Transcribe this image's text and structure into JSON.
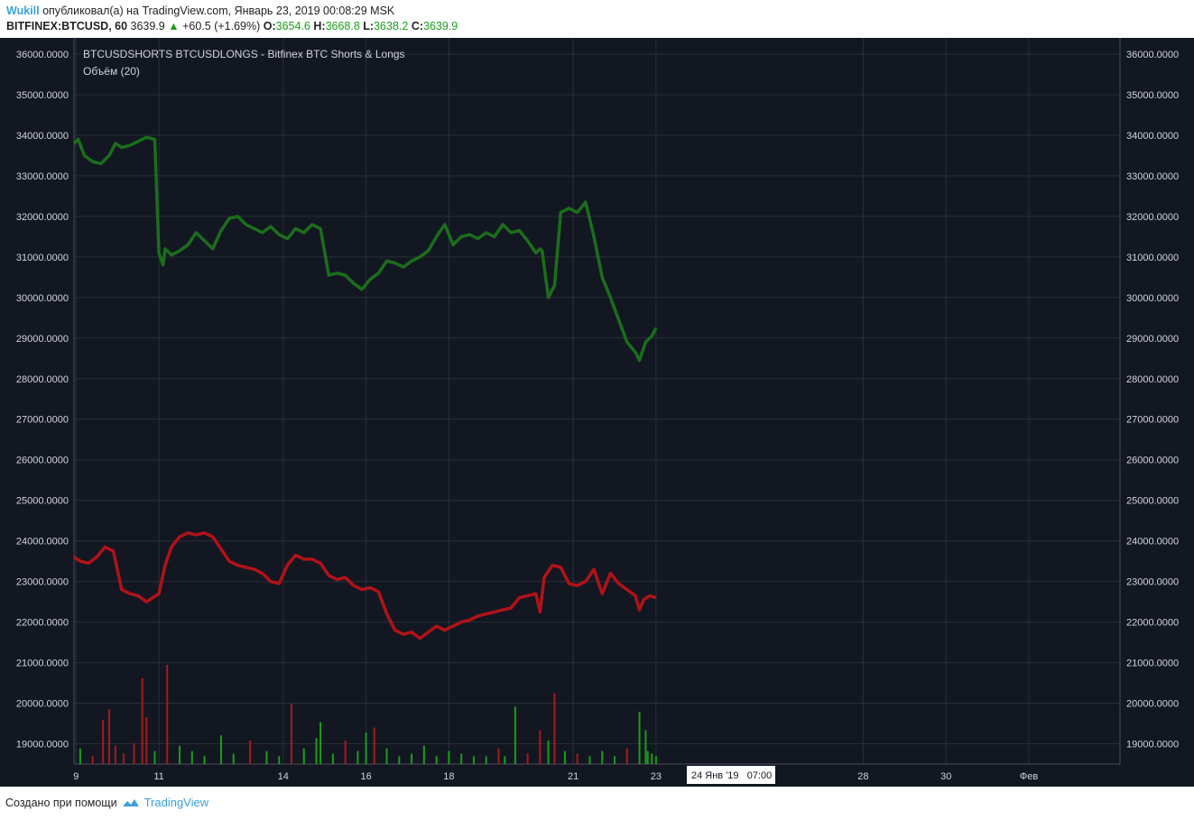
{
  "header": {
    "user": "Wukill",
    "published_text": "опубликовал(а) на TradingView.com, Январь 23, 2019 00:08:29 MSK",
    "symbol": "BITFINEX:BTCUSD, 60",
    "price": "3639.9",
    "change": "+60.5 (+1.69%)",
    "open_label": "O:",
    "open": "3654.6",
    "high_label": "H:",
    "high": "3668.8",
    "low_label": "L:",
    "low": "3638.2",
    "close_label": "C:",
    "close": "3639.9"
  },
  "legend": {
    "line1": "BTCUSDSHORTS BTCUSDLONGS - Bitfinex BTC Shorts & Longs",
    "line2": "Объём (20)"
  },
  "crosshair_label": "24 Янв '19   07:00",
  "footer": {
    "made_with": "Создано при помощи",
    "brand": "TradingView"
  },
  "colors": {
    "background": "#131722",
    "grid": "#2a2e39",
    "longs": "#1b6e1b",
    "shorts": "#b01318",
    "volume_up": "#18a018",
    "volume_down": "#a51b1b",
    "axis_text": "#d1d4dc"
  },
  "chart_data": {
    "type": "line",
    "y_ticks": [
      "36000.0000",
      "35000.0000",
      "34000.0000",
      "33000.0000",
      "32000.0000",
      "31000.0000",
      "30000.0000",
      "29000.0000",
      "28000.0000",
      "27000.0000",
      "26000.0000",
      "25000.0000",
      "24000.0000",
      "23000.0000",
      "22000.0000",
      "21000.0000",
      "20000.0000",
      "19000.0000"
    ],
    "ylim": [
      18500,
      36400
    ],
    "x_ticks": [
      "9",
      "11",
      "14",
      "16",
      "18",
      "21",
      "23",
      "28",
      "30",
      "Фев"
    ],
    "x_tick_days": [
      9,
      11,
      14,
      16,
      18,
      21,
      23,
      28,
      30,
      32
    ],
    "xlim": [
      8.95,
      34.2
    ],
    "series": [
      {
        "key": "longs",
        "x": [
          8.95,
          9.05,
          9.2,
          9.4,
          9.6,
          9.8,
          9.95,
          10.1,
          10.3,
          10.5,
          10.7,
          10.9,
          11.0,
          11.1,
          11.15,
          11.3,
          11.5,
          11.7,
          11.9,
          12.1,
          12.3,
          12.5,
          12.7,
          12.9,
          13.1,
          13.3,
          13.5,
          13.7,
          13.9,
          14.1,
          14.3,
          14.5,
          14.7,
          14.9,
          15.1,
          15.3,
          15.5,
          15.7,
          15.9,
          16.1,
          16.3,
          16.5,
          16.7,
          16.9,
          17.1,
          17.3,
          17.5,
          17.7,
          17.9,
          18.1,
          18.3,
          18.5,
          18.7,
          18.9,
          19.1,
          19.3,
          19.5,
          19.7,
          19.9,
          20.1,
          20.2,
          20.25,
          20.4,
          20.55,
          20.7,
          20.9,
          21.1,
          21.3,
          21.5,
          21.7,
          21.9,
          22.1,
          22.3,
          22.5,
          22.6,
          22.75,
          22.85,
          22.9,
          23.0
        ],
        "values": [
          33800,
          33900,
          33500,
          33350,
          33300,
          33500,
          33800,
          33700,
          33750,
          33850,
          33950,
          33900,
          31100,
          30800,
          31200,
          31050,
          31150,
          31300,
          31600,
          31400,
          31200,
          31650,
          31950,
          32000,
          31800,
          31700,
          31600,
          31750,
          31550,
          31450,
          31700,
          31600,
          31800,
          31700,
          30550,
          30600,
          30550,
          30350,
          30200,
          30450,
          30600,
          30900,
          30850,
          30750,
          30900,
          31000,
          31150,
          31500,
          31800,
          31300,
          31500,
          31550,
          31450,
          31600,
          31500,
          31800,
          31600,
          31650,
          31400,
          31100,
          31200,
          31150,
          30000,
          30300,
          32100,
          32200,
          32100,
          32350,
          31500,
          30500,
          30000,
          29450,
          28900,
          28650,
          28450,
          28900,
          29000,
          29050,
          29250
        ]
      },
      {
        "key": "shorts",
        "x": [
          8.95,
          9.1,
          9.3,
          9.5,
          9.7,
          9.9,
          10.1,
          10.3,
          10.5,
          10.7,
          10.85,
          11.0,
          11.15,
          11.3,
          11.5,
          11.7,
          11.9,
          12.1,
          12.3,
          12.5,
          12.7,
          12.9,
          13.1,
          13.3,
          13.5,
          13.7,
          13.9,
          14.1,
          14.3,
          14.5,
          14.7,
          14.9,
          15.1,
          15.3,
          15.5,
          15.7,
          15.9,
          16.1,
          16.3,
          16.5,
          16.7,
          16.9,
          17.1,
          17.3,
          17.5,
          17.7,
          17.9,
          18.1,
          18.3,
          18.5,
          18.7,
          18.9,
          19.1,
          19.3,
          19.5,
          19.7,
          19.9,
          20.1,
          20.2,
          20.3,
          20.5,
          20.7,
          20.9,
          21.1,
          21.3,
          21.5,
          21.7,
          21.9,
          22.1,
          22.3,
          22.5,
          22.6,
          22.7,
          22.85,
          23.0
        ],
        "values": [
          23600,
          23500,
          23450,
          23600,
          23850,
          23750,
          22800,
          22700,
          22650,
          22500,
          22600,
          22700,
          23400,
          23850,
          24100,
          24200,
          24150,
          24200,
          24100,
          23800,
          23500,
          23400,
          23350,
          23300,
          23200,
          23000,
          22950,
          23400,
          23650,
          23550,
          23550,
          23450,
          23150,
          23050,
          23100,
          22900,
          22800,
          22850,
          22750,
          22200,
          21800,
          21700,
          21750,
          21600,
          21750,
          21900,
          21800,
          21900,
          22000,
          22050,
          22150,
          22200,
          22250,
          22300,
          22350,
          22600,
          22650,
          22700,
          22250,
          23100,
          23400,
          23350,
          22950,
          22900,
          23000,
          23300,
          22700,
          23200,
          22950,
          22800,
          22650,
          22300,
          22550,
          22650,
          22600
        ]
      }
    ],
    "volume": {
      "x": [
        9.1,
        9.4,
        9.65,
        9.8,
        9.95,
        10.15,
        10.4,
        10.6,
        10.7,
        10.9,
        11.2,
        11.5,
        11.8,
        12.1,
        12.5,
        12.8,
        13.2,
        13.6,
        13.9,
        14.2,
        14.5,
        14.8,
        14.9,
        15.2,
        15.5,
        15.8,
        16.0,
        16.2,
        16.5,
        16.8,
        17.1,
        17.4,
        17.7,
        18.0,
        18.3,
        18.6,
        18.9,
        19.2,
        19.35,
        19.6,
        19.9,
        20.2,
        20.4,
        20.55,
        20.8,
        21.1,
        21.4,
        21.7,
        22.0,
        22.3,
        22.6,
        22.75,
        22.8,
        22.9,
        23.0
      ],
      "values": [
        600,
        300,
        1700,
        2100,
        700,
        400,
        800,
        3300,
        1800,
        500,
        3800,
        700,
        500,
        300,
        1100,
        400,
        900,
        500,
        300,
        2300,
        600,
        1000,
        1600,
        400,
        900,
        500,
        1200,
        1400,
        600,
        300,
        400,
        700,
        300,
        500,
        400,
        300,
        300,
        600,
        300,
        2200,
        400,
        1300,
        900,
        2700,
        500,
        400,
        300,
        500,
        300,
        600,
        2000,
        1300,
        500,
        400,
        300
      ],
      "up": [
        true,
        false,
        false,
        false,
        false,
        false,
        false,
        false,
        false,
        true,
        false,
        true,
        true,
        true,
        true,
        true,
        false,
        true,
        true,
        false,
        true,
        true,
        true,
        true,
        false,
        true,
        true,
        false,
        true,
        true,
        true,
        true,
        true,
        true,
        true,
        true,
        true,
        false,
        true,
        true,
        false,
        false,
        true,
        false,
        true,
        false,
        true,
        true,
        true,
        false,
        true,
        true,
        true,
        true,
        true
      ]
    }
  }
}
